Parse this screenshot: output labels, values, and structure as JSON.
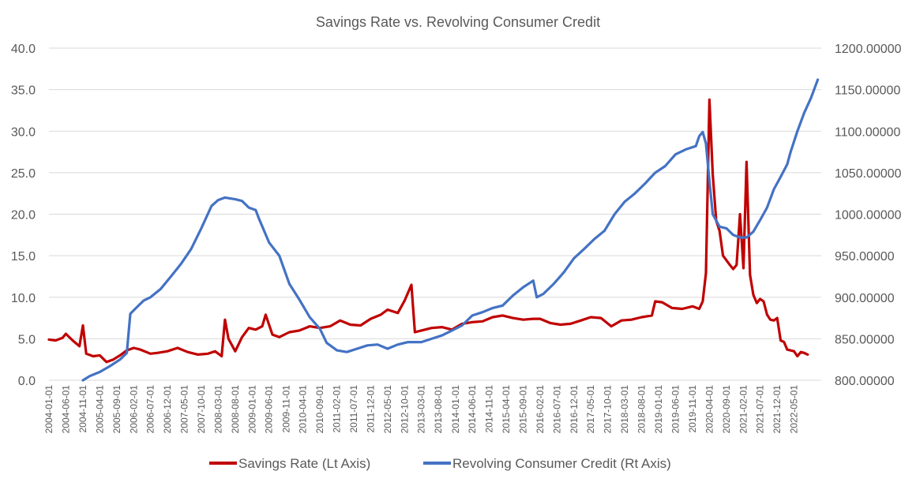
{
  "chart_data": {
    "type": "line",
    "title": "Savings Rate vs. Revolving Consumer Credit",
    "y_left": {
      "range": [
        0,
        40
      ],
      "ticks": [
        "0.0",
        "5.0",
        "10.0",
        "15.0",
        "20.0",
        "25.0",
        "30.0",
        "35.0",
        "40.0"
      ]
    },
    "y_right": {
      "range": [
        800,
        1200
      ],
      "ticks": [
        "800.00000",
        "850.00000",
        "900.00000",
        "950.00000",
        "1000.00000",
        "1050.00000",
        "1100.00000",
        "1150.00000",
        "1200.00000"
      ]
    },
    "x_ticks": [
      "2004-01-01",
      "2004-06-01",
      "2004-11-01",
      "2005-04-01",
      "2005-09-01",
      "2006-02-01",
      "2006-07-01",
      "2006-12-01",
      "2007-05-01",
      "2007-10-01",
      "2008-03-01",
      "2008-08-01",
      "2009-01-01",
      "2009-06-01",
      "2009-11-01",
      "2010-04-01",
      "2010-09-01",
      "2011-02-01",
      "2011-07-01",
      "2011-12-01",
      "2012-05-01",
      "2012-10-01",
      "2013-03-01",
      "2013-08-01",
      "2014-01-01",
      "2014-06-01",
      "2014-11-01",
      "2015-04-01",
      "2015-09-01",
      "2016-02-01",
      "2016-07-01",
      "2016-12-01",
      "2017-05-01",
      "2017-10-01",
      "2018-03-01",
      "2018-08-01",
      "2019-01-01",
      "2019-06-01",
      "2019-11-01",
      "2020-04-01",
      "2020-09-01",
      "2021-02-01",
      "2021-07-01",
      "2021-12-01",
      "2022-05-01"
    ],
    "gridlines": true,
    "legend_position": "bottom",
    "series": [
      {
        "name": "Savings Rate (Lt Axis)",
        "axis": "left",
        "color": "#c00000",
        "points": [
          [
            "2004-01-01",
            4.9
          ],
          [
            "2004-03-01",
            4.8
          ],
          [
            "2004-05-01",
            5.1
          ],
          [
            "2004-06-01",
            5.6
          ],
          [
            "2004-08-01",
            4.8
          ],
          [
            "2004-10-01",
            4.1
          ],
          [
            "2004-11-01",
            6.6
          ],
          [
            "2004-12-01",
            3.2
          ],
          [
            "2005-02-01",
            2.9
          ],
          [
            "2005-04-01",
            3.0
          ],
          [
            "2005-06-01",
            2.2
          ],
          [
            "2005-08-01",
            2.5
          ],
          [
            "2005-10-01",
            3.0
          ],
          [
            "2005-12-01",
            3.6
          ],
          [
            "2006-02-01",
            3.9
          ],
          [
            "2006-04-01",
            3.7
          ],
          [
            "2006-07-01",
            3.2
          ],
          [
            "2006-09-01",
            3.3
          ],
          [
            "2006-12-01",
            3.5
          ],
          [
            "2007-03-01",
            3.9
          ],
          [
            "2007-06-01",
            3.4
          ],
          [
            "2007-09-01",
            3.1
          ],
          [
            "2007-12-01",
            3.2
          ],
          [
            "2008-02-01",
            3.5
          ],
          [
            "2008-04-01",
            2.9
          ],
          [
            "2008-05-01",
            7.3
          ],
          [
            "2008-06-01",
            5.0
          ],
          [
            "2008-08-01",
            3.5
          ],
          [
            "2008-10-01",
            5.2
          ],
          [
            "2008-12-01",
            6.3
          ],
          [
            "2009-02-01",
            6.1
          ],
          [
            "2009-04-01",
            6.5
          ],
          [
            "2009-05-01",
            7.9
          ],
          [
            "2009-07-01",
            5.5
          ],
          [
            "2009-09-01",
            5.2
          ],
          [
            "2009-12-01",
            5.8
          ],
          [
            "2010-03-01",
            6.0
          ],
          [
            "2010-06-01",
            6.5
          ],
          [
            "2010-09-01",
            6.3
          ],
          [
            "2010-12-01",
            6.5
          ],
          [
            "2011-03-01",
            7.2
          ],
          [
            "2011-06-01",
            6.7
          ],
          [
            "2011-09-01",
            6.6
          ],
          [
            "2011-12-01",
            7.4
          ],
          [
            "2012-03-01",
            7.9
          ],
          [
            "2012-05-01",
            8.5
          ],
          [
            "2012-08-01",
            8.1
          ],
          [
            "2012-10-01",
            9.6
          ],
          [
            "2012-12-01",
            11.5
          ],
          [
            "2013-01-01",
            5.8
          ],
          [
            "2013-03-01",
            6.0
          ],
          [
            "2013-06-01",
            6.3
          ],
          [
            "2013-09-01",
            6.4
          ],
          [
            "2013-12-01",
            6.1
          ],
          [
            "2014-03-01",
            6.8
          ],
          [
            "2014-06-01",
            7.0
          ],
          [
            "2014-09-01",
            7.1
          ],
          [
            "2014-12-01",
            7.6
          ],
          [
            "2015-03-01",
            7.8
          ],
          [
            "2015-06-01",
            7.5
          ],
          [
            "2015-09-01",
            7.3
          ],
          [
            "2015-12-01",
            7.4
          ],
          [
            "2016-02-01",
            7.4
          ],
          [
            "2016-05-01",
            6.9
          ],
          [
            "2016-08-01",
            6.7
          ],
          [
            "2016-11-01",
            6.8
          ],
          [
            "2017-02-01",
            7.2
          ],
          [
            "2017-05-01",
            7.6
          ],
          [
            "2017-08-01",
            7.5
          ],
          [
            "2017-11-01",
            6.5
          ],
          [
            "2018-02-01",
            7.2
          ],
          [
            "2018-05-01",
            7.3
          ],
          [
            "2018-08-01",
            7.6
          ],
          [
            "2018-11-01",
            7.8
          ],
          [
            "2018-12-01",
            9.5
          ],
          [
            "2019-02-01",
            9.4
          ],
          [
            "2019-05-01",
            8.7
          ],
          [
            "2019-08-01",
            8.6
          ],
          [
            "2019-11-01",
            8.9
          ],
          [
            "2020-01-01",
            8.6
          ],
          [
            "2020-02-01",
            9.5
          ],
          [
            "2020-03-01",
            12.9
          ],
          [
            "2020-04-01",
            33.8
          ],
          [
            "2020-05-01",
            24.8
          ],
          [
            "2020-06-01",
            19.2
          ],
          [
            "2020-07-01",
            18.0
          ],
          [
            "2020-08-01",
            15.0
          ],
          [
            "2020-10-01",
            13.9
          ],
          [
            "2020-11-01",
            13.4
          ],
          [
            "2020-12-01",
            13.9
          ],
          [
            "2021-01-01",
            20.0
          ],
          [
            "2021-02-01",
            13.5
          ],
          [
            "2021-03-01",
            26.3
          ],
          [
            "2021-04-01",
            12.7
          ],
          [
            "2021-05-01",
            10.3
          ],
          [
            "2021-06-01",
            9.3
          ],
          [
            "2021-07-01",
            9.8
          ],
          [
            "2021-08-01",
            9.5
          ],
          [
            "2021-09-01",
            7.9
          ],
          [
            "2021-10-01",
            7.3
          ],
          [
            "2021-11-01",
            7.2
          ],
          [
            "2021-12-01",
            7.5
          ],
          [
            "2022-01-01",
            4.8
          ],
          [
            "2022-02-01",
            4.6
          ],
          [
            "2022-03-01",
            3.7
          ],
          [
            "2022-05-01",
            3.5
          ],
          [
            "2022-06-01",
            2.9
          ],
          [
            "2022-07-01",
            3.4
          ],
          [
            "2022-08-01",
            3.3
          ],
          [
            "2022-09-01",
            3.1
          ]
        ]
      },
      {
        "name": "Revolving Consumer Credit (Rt Axis)",
        "axis": "right",
        "color": "#4472c4",
        "points": [
          [
            "2004-11-01",
            800
          ],
          [
            "2005-01-01",
            805
          ],
          [
            "2005-04-01",
            810
          ],
          [
            "2005-07-01",
            817
          ],
          [
            "2005-10-01",
            825
          ],
          [
            "2005-12-01",
            833
          ],
          [
            "2006-01-01",
            880
          ],
          [
            "2006-03-01",
            888
          ],
          [
            "2006-05-01",
            896
          ],
          [
            "2006-07-01",
            900
          ],
          [
            "2006-10-01",
            910
          ],
          [
            "2007-01-01",
            925
          ],
          [
            "2007-04-01",
            940
          ],
          [
            "2007-07-01",
            958
          ],
          [
            "2007-10-01",
            983
          ],
          [
            "2008-01-01",
            1010
          ],
          [
            "2008-03-01",
            1017
          ],
          [
            "2008-05-01",
            1020
          ],
          [
            "2008-08-01",
            1018
          ],
          [
            "2008-10-01",
            1016
          ],
          [
            "2008-12-01",
            1008
          ],
          [
            "2009-02-01",
            1005
          ],
          [
            "2009-03-01",
            995
          ],
          [
            "2009-06-01",
            966
          ],
          [
            "2009-09-01",
            950
          ],
          [
            "2009-12-01",
            916
          ],
          [
            "2010-03-01",
            897
          ],
          [
            "2010-06-01",
            876
          ],
          [
            "2010-09-01",
            862
          ],
          [
            "2010-11-01",
            845
          ],
          [
            "2011-02-01",
            836
          ],
          [
            "2011-05-01",
            834
          ],
          [
            "2011-08-01",
            838
          ],
          [
            "2011-11-01",
            842
          ],
          [
            "2012-02-01",
            843
          ],
          [
            "2012-05-01",
            838
          ],
          [
            "2012-08-01",
            843
          ],
          [
            "2012-11-01",
            846
          ],
          [
            "2013-03-01",
            846
          ],
          [
            "2013-06-01",
            850
          ],
          [
            "2013-09-01",
            854
          ],
          [
            "2013-12-01",
            860
          ],
          [
            "2014-03-01",
            866
          ],
          [
            "2014-06-01",
            878
          ],
          [
            "2014-09-01",
            882
          ],
          [
            "2014-12-01",
            887
          ],
          [
            "2015-03-01",
            890
          ],
          [
            "2015-06-01",
            902
          ],
          [
            "2015-09-01",
            912
          ],
          [
            "2015-12-01",
            920
          ],
          [
            "2016-01-01",
            900
          ],
          [
            "2016-03-01",
            904
          ],
          [
            "2016-06-01",
            916
          ],
          [
            "2016-09-01",
            930
          ],
          [
            "2016-12-01",
            947
          ],
          [
            "2017-03-01",
            958
          ],
          [
            "2017-06-01",
            970
          ],
          [
            "2017-09-01",
            980
          ],
          [
            "2017-12-01",
            1000
          ],
          [
            "2018-03-01",
            1015
          ],
          [
            "2018-06-01",
            1025
          ],
          [
            "2018-09-01",
            1037
          ],
          [
            "2018-12-01",
            1050
          ],
          [
            "2019-03-01",
            1058
          ],
          [
            "2019-06-01",
            1072
          ],
          [
            "2019-09-01",
            1078
          ],
          [
            "2019-12-01",
            1082
          ],
          [
            "2020-01-01",
            1094
          ],
          [
            "2020-02-01",
            1099
          ],
          [
            "2020-03-01",
            1085
          ],
          [
            "2020-04-01",
            1040
          ],
          [
            "2020-05-01",
            1000
          ],
          [
            "2020-07-01",
            985
          ],
          [
            "2020-09-01",
            983
          ],
          [
            "2020-11-01",
            975
          ],
          [
            "2021-01-01",
            972
          ],
          [
            "2021-03-01",
            972
          ],
          [
            "2021-05-01",
            979
          ],
          [
            "2021-07-01",
            993
          ],
          [
            "2021-09-01",
            1008
          ],
          [
            "2021-11-01",
            1030
          ],
          [
            "2022-01-01",
            1045
          ],
          [
            "2022-03-01",
            1060
          ],
          [
            "2022-04-01",
            1075
          ],
          [
            "2022-06-01",
            1100
          ],
          [
            "2022-08-01",
            1122
          ],
          [
            "2022-10-01",
            1140
          ],
          [
            "2022-12-01",
            1162
          ]
        ]
      }
    ]
  }
}
